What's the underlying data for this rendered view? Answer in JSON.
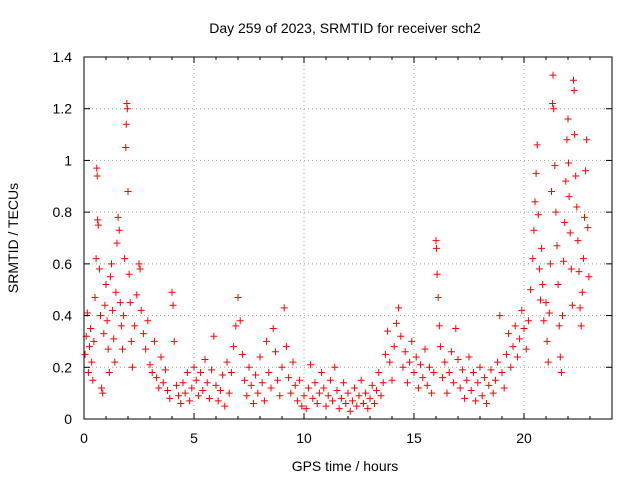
{
  "chart_data": {
    "type": "scatter",
    "title": "Day 259 of 2023, SRMTID for receiver sch2",
    "xlabel": "GPS time / hours",
    "ylabel": "SRMTID / TECUs",
    "xlim": [
      0,
      24
    ],
    "ylim": [
      0,
      1.4
    ],
    "xticks": [
      0,
      5,
      10,
      15,
      20
    ],
    "yticks": [
      0,
      0.2,
      0.4,
      0.6,
      0.8,
      1,
      1.2,
      1.4
    ],
    "xtick_labels": [
      "0",
      "5",
      "10",
      "15",
      "20"
    ],
    "ytick_labels": [
      "0",
      "0.2",
      "0.4",
      "0.6",
      "0.8",
      "1",
      "1.2",
      "1.4"
    ],
    "grid": true,
    "marker": "+",
    "color": "#ff0000",
    "series": [
      {
        "name": "SRMTID",
        "points": [
          [
            0.05,
            0.25
          ],
          [
            0.1,
            0.32
          ],
          [
            0.15,
            0.41
          ],
          [
            0.2,
            0.18
          ],
          [
            0.25,
            0.28
          ],
          [
            0.3,
            0.35
          ],
          [
            0.35,
            0.22
          ],
          [
            0.4,
            0.15
          ],
          [
            0.45,
            0.3
          ],
          [
            0.5,
            0.47
          ],
          [
            0.55,
            0.62
          ],
          [
            0.58,
            0.97
          ],
          [
            0.6,
            0.94
          ],
          [
            0.62,
            0.77
          ],
          [
            0.65,
            0.75
          ],
          [
            0.7,
            0.58
          ],
          [
            0.75,
            0.4
          ],
          [
            0.8,
            0.12
          ],
          [
            0.85,
            0.1
          ],
          [
            0.9,
            0.33
          ],
          [
            0.95,
            0.44
          ],
          [
            1.0,
            0.52
          ],
          [
            1.05,
            0.38
          ],
          [
            1.1,
            0.27
          ],
          [
            1.15,
            0.18
          ],
          [
            1.2,
            0.55
          ],
          [
            1.25,
            0.6
          ],
          [
            1.3,
            0.42
          ],
          [
            1.35,
            0.31
          ],
          [
            1.4,
            0.22
          ],
          [
            1.45,
            0.49
          ],
          [
            1.5,
            0.68
          ],
          [
            1.55,
            0.78
          ],
          [
            1.6,
            0.73
          ],
          [
            1.65,
            0.45
          ],
          [
            1.7,
            0.36
          ],
          [
            1.75,
            0.27
          ],
          [
            1.8,
            0.4
          ],
          [
            1.85,
            0.62
          ],
          [
            1.9,
            1.05
          ],
          [
            1.92,
            1.14
          ],
          [
            1.95,
            1.22
          ],
          [
            1.97,
            1.2
          ],
          [
            2.0,
            0.88
          ],
          [
            2.05,
            0.56
          ],
          [
            2.1,
            0.45
          ],
          [
            2.15,
            0.3
          ],
          [
            2.2,
            0.2
          ],
          [
            2.3,
            0.36
          ],
          [
            2.4,
            0.48
          ],
          [
            2.5,
            0.6
          ],
          [
            2.55,
            0.58
          ],
          [
            2.6,
            0.42
          ],
          [
            2.7,
            0.33
          ],
          [
            2.8,
            0.27
          ],
          [
            2.9,
            0.38
          ],
          [
            3.0,
            0.21
          ],
          [
            3.1,
            0.18
          ],
          [
            3.2,
            0.3
          ],
          [
            3.3,
            0.16
          ],
          [
            3.4,
            0.12
          ],
          [
            3.5,
            0.24
          ],
          [
            3.6,
            0.14
          ],
          [
            3.7,
            0.19
          ],
          [
            3.8,
            0.11
          ],
          [
            3.9,
            0.08
          ],
          [
            4.0,
            0.49
          ],
          [
            4.05,
            0.44
          ],
          [
            4.1,
            0.3
          ],
          [
            4.2,
            0.13
          ],
          [
            4.3,
            0.09
          ],
          [
            4.4,
            0.06
          ],
          [
            4.5,
            0.14
          ],
          [
            4.6,
            0.1
          ],
          [
            4.7,
            0.18
          ],
          [
            4.8,
            0.07
          ],
          [
            4.9,
            0.12
          ],
          [
            5.0,
            0.2
          ],
          [
            5.1,
            0.15
          ],
          [
            5.2,
            0.09
          ],
          [
            5.3,
            0.18
          ],
          [
            5.4,
            0.11
          ],
          [
            5.5,
            0.23
          ],
          [
            5.6,
            0.14
          ],
          [
            5.7,
            0.08
          ],
          [
            5.8,
            0.19
          ],
          [
            5.9,
            0.32
          ],
          [
            6.0,
            0.13
          ],
          [
            6.1,
            0.07
          ],
          [
            6.2,
            0.11
          ],
          [
            6.3,
            0.17
          ],
          [
            6.4,
            0.05
          ],
          [
            6.5,
            0.22
          ],
          [
            6.6,
            0.1
          ],
          [
            6.7,
            0.18
          ],
          [
            6.8,
            0.28
          ],
          [
            6.9,
            0.36
          ],
          [
            7.0,
            0.47
          ],
          [
            7.1,
            0.38
          ],
          [
            7.2,
            0.25
          ],
          [
            7.3,
            0.15
          ],
          [
            7.4,
            0.09
          ],
          [
            7.5,
            0.2
          ],
          [
            7.6,
            0.13
          ],
          [
            7.7,
            0.06
          ],
          [
            7.8,
            0.17
          ],
          [
            7.9,
            0.1
          ],
          [
            8.0,
            0.24
          ],
          [
            8.1,
            0.14
          ],
          [
            8.2,
            0.07
          ],
          [
            8.3,
            0.3
          ],
          [
            8.4,
            0.18
          ],
          [
            8.5,
            0.12
          ],
          [
            8.6,
            0.35
          ],
          [
            8.7,
            0.26
          ],
          [
            8.8,
            0.15
          ],
          [
            8.9,
            0.09
          ],
          [
            9.0,
            0.2
          ],
          [
            9.1,
            0.43
          ],
          [
            9.2,
            0.28
          ],
          [
            9.3,
            0.16
          ],
          [
            9.4,
            0.1
          ],
          [
            9.5,
            0.22
          ],
          [
            9.6,
            0.13
          ],
          [
            9.7,
            0.07
          ],
          [
            9.8,
            0.15
          ],
          [
            9.9,
            0.05
          ],
          [
            10.0,
            0.09
          ],
          [
            10.1,
            0.04
          ],
          [
            10.2,
            0.12
          ],
          [
            10.3,
            0.21
          ],
          [
            10.4,
            0.08
          ],
          [
            10.5,
            0.14
          ],
          [
            10.6,
            0.06
          ],
          [
            10.7,
            0.1
          ],
          [
            10.8,
            0.18
          ],
          [
            10.9,
            0.12
          ],
          [
            11.0,
            0.05
          ],
          [
            11.1,
            0.09
          ],
          [
            11.2,
            0.15
          ],
          [
            11.3,
            0.07
          ],
          [
            11.4,
            0.2
          ],
          [
            11.5,
            0.11
          ],
          [
            11.6,
            0.04
          ],
          [
            11.7,
            0.08
          ],
          [
            11.8,
            0.14
          ],
          [
            11.9,
            0.06
          ],
          [
            12.0,
            0.1
          ],
          [
            12.1,
            0.03
          ],
          [
            12.2,
            0.07
          ],
          [
            12.3,
            0.12
          ],
          [
            12.4,
            0.05
          ],
          [
            12.5,
            0.09
          ],
          [
            12.6,
            0.15
          ],
          [
            12.7,
            0.06
          ],
          [
            12.8,
            0.1
          ],
          [
            12.9,
            0.04
          ],
          [
            13.0,
            0.08
          ],
          [
            13.1,
            0.13
          ],
          [
            13.2,
            0.06
          ],
          [
            13.3,
            0.11
          ],
          [
            13.4,
            0.18
          ],
          [
            13.5,
            0.09
          ],
          [
            13.6,
            0.14
          ],
          [
            13.7,
            0.25
          ],
          [
            13.8,
            0.34
          ],
          [
            13.9,
            0.22
          ],
          [
            14.0,
            0.15
          ],
          [
            14.1,
            0.28
          ],
          [
            14.2,
            0.37
          ],
          [
            14.3,
            0.43
          ],
          [
            14.4,
            0.32
          ],
          [
            14.5,
            0.2
          ],
          [
            14.6,
            0.26
          ],
          [
            14.7,
            0.14
          ],
          [
            14.8,
            0.22
          ],
          [
            14.9,
            0.3
          ],
          [
            15.0,
            0.18
          ],
          [
            15.1,
            0.24
          ],
          [
            15.2,
            0.12
          ],
          [
            15.3,
            0.21
          ],
          [
            15.4,
            0.16
          ],
          [
            15.5,
            0.27
          ],
          [
            15.6,
            0.13
          ],
          [
            15.7,
            0.2
          ],
          [
            15.8,
            0.1
          ],
          [
            15.9,
            0.18
          ],
          [
            16.0,
            0.69
          ],
          [
            16.02,
            0.66
          ],
          [
            16.05,
            0.56
          ],
          [
            16.1,
            0.47
          ],
          [
            16.15,
            0.36
          ],
          [
            16.2,
            0.28
          ],
          [
            16.3,
            0.16
          ],
          [
            16.4,
            0.22
          ],
          [
            16.5,
            0.1
          ],
          [
            16.6,
            0.18
          ],
          [
            16.7,
            0.26
          ],
          [
            16.8,
            0.14
          ],
          [
            16.9,
            0.35
          ],
          [
            17.0,
            0.23
          ],
          [
            17.1,
            0.12
          ],
          [
            17.2,
            0.19
          ],
          [
            17.3,
            0.08
          ],
          [
            17.4,
            0.15
          ],
          [
            17.5,
            0.24
          ],
          [
            17.6,
            0.11
          ],
          [
            17.7,
            0.18
          ],
          [
            17.8,
            0.07
          ],
          [
            17.9,
            0.14
          ],
          [
            18.0,
            0.2
          ],
          [
            18.1,
            0.09
          ],
          [
            18.2,
            0.16
          ],
          [
            18.3,
            0.06
          ],
          [
            18.4,
            0.13
          ],
          [
            18.5,
            0.19
          ],
          [
            18.6,
            0.1
          ],
          [
            18.7,
            0.15
          ],
          [
            18.8,
            0.22
          ],
          [
            18.9,
            0.4
          ],
          [
            19.0,
            0.18
          ],
          [
            19.1,
            0.12
          ],
          [
            19.2,
            0.25
          ],
          [
            19.3,
            0.33
          ],
          [
            19.4,
            0.2
          ],
          [
            19.5,
            0.28
          ],
          [
            19.6,
            0.36
          ],
          [
            19.7,
            0.24
          ],
          [
            19.8,
            0.31
          ],
          [
            19.9,
            0.42
          ],
          [
            20.0,
            0.35
          ],
          [
            20.1,
            0.27
          ],
          [
            20.2,
            0.38
          ],
          [
            20.3,
            0.5
          ],
          [
            20.4,
            0.62
          ],
          [
            20.45,
            0.73
          ],
          [
            20.5,
            0.84
          ],
          [
            20.55,
            0.95
          ],
          [
            20.6,
            1.06
          ],
          [
            20.65,
            0.79
          ],
          [
            20.7,
            0.58
          ],
          [
            20.75,
            0.46
          ],
          [
            20.8,
            0.66
          ],
          [
            20.85,
            0.52
          ],
          [
            20.9,
            0.38
          ],
          [
            21.0,
            0.45
          ],
          [
            21.05,
            0.3
          ],
          [
            21.1,
            0.22
          ],
          [
            21.15,
            0.41
          ],
          [
            21.2,
            0.6
          ],
          [
            21.25,
            0.88
          ],
          [
            21.3,
            1.22
          ],
          [
            21.32,
            1.33
          ],
          [
            21.35,
            1.2
          ],
          [
            21.4,
            0.98
          ],
          [
            21.45,
            0.8
          ],
          [
            21.5,
            0.67
          ],
          [
            21.55,
            0.52
          ],
          [
            21.6,
            0.36
          ],
          [
            21.65,
            0.24
          ],
          [
            21.7,
            0.18
          ],
          [
            21.75,
            0.4
          ],
          [
            21.8,
            0.61
          ],
          [
            21.85,
            0.76
          ],
          [
            21.9,
            0.92
          ],
          [
            21.95,
            1.08
          ],
          [
            22.0,
            1.16
          ],
          [
            22.02,
            0.99
          ],
          [
            22.05,
            0.86
          ],
          [
            22.1,
            0.72
          ],
          [
            22.15,
            0.58
          ],
          [
            22.2,
            0.44
          ],
          [
            22.25,
            1.31
          ],
          [
            22.28,
            1.27
          ],
          [
            22.3,
            1.1
          ],
          [
            22.35,
            0.94
          ],
          [
            22.4,
            0.82
          ],
          [
            22.45,
            0.69
          ],
          [
            22.5,
            0.57
          ],
          [
            22.55,
            0.43
          ],
          [
            22.6,
            0.36
          ],
          [
            22.65,
            0.49
          ],
          [
            22.7,
            0.62
          ],
          [
            22.75,
            0.78
          ],
          [
            22.8,
            0.96
          ],
          [
            22.85,
            1.08
          ],
          [
            22.9,
            0.74
          ],
          [
            22.95,
            0.55
          ]
        ]
      }
    ]
  }
}
